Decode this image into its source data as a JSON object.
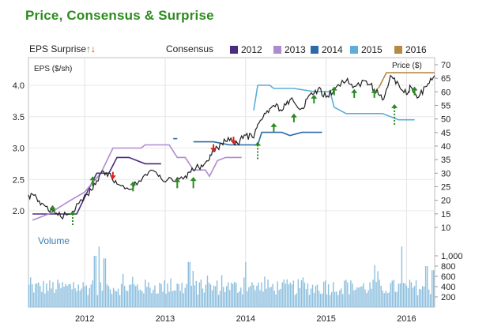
{
  "title": "Price, Consensus & Surprise",
  "colors": {
    "title": "#2e8b1e",
    "s2012": "#4b2a7f",
    "s2013": "#b08ad0",
    "s2014": "#2c6aa8",
    "s2015": "#5aaed8",
    "s2016": "#b58a44",
    "price": "#222222",
    "volume": "#8dbfdf",
    "up_arrow": "#2a8a22",
    "down_arrow": "#dd2222"
  },
  "legend": {
    "eps_surprise_label": "EPS Surprise",
    "consensus_label": "Consensus",
    "series_labels": [
      "2012",
      "2013",
      "2014",
      "2015",
      "2016"
    ]
  },
  "chart_data": {
    "type": "line",
    "left_axis": {
      "label": "EPS ($/sh)",
      "ticks": [
        "2.0",
        "2.5",
        "3.0",
        "3.5",
        "4.0"
      ],
      "range": [
        1.7,
        4.4
      ]
    },
    "right_axis": {
      "label": "Price ($)",
      "ticks": [
        "10",
        "15",
        "20",
        "25",
        "30",
        "35",
        "40",
        "45",
        "50",
        "55",
        "60",
        "65",
        "70"
      ],
      "range": [
        7,
        72
      ]
    },
    "volume_axis": {
      "label": "Volume",
      "ticks": [
        "200",
        "400",
        "600",
        "800",
        "1,000"
      ],
      "range": [
        0,
        1250
      ]
    },
    "x_axis": {
      "ticks": [
        "2012",
        "2013",
        "2014",
        "2015",
        "2016"
      ],
      "range": [
        2011.3,
        2016.35
      ]
    },
    "consensus": [
      {
        "name": "2012",
        "segments": [
          [
            [
              2011.35,
              1.95
            ],
            [
              2011.9,
              1.95
            ],
            [
              2012.05,
              2.35
            ],
            [
              2012.15,
              2.6
            ],
            [
              2012.3,
              2.6
            ],
            [
              2012.4,
              2.85
            ],
            [
              2012.55,
              2.85
            ],
            [
              2012.75,
              2.75
            ],
            [
              2012.95,
              2.75
            ]
          ]
        ]
      },
      {
        "name": "2013",
        "segments": [
          [
            [
              2011.35,
              1.85
            ],
            [
              2011.55,
              1.95
            ],
            [
              2011.8,
              2.15
            ],
            [
              2012.0,
              2.3
            ],
            [
              2012.2,
              2.6
            ],
            [
              2012.35,
              3.0
            ],
            [
              2012.7,
              3.0
            ],
            [
              2012.75,
              3.05
            ],
            [
              2013.05,
              3.05
            ],
            [
              2013.15,
              2.85
            ],
            [
              2013.25,
              2.85
            ],
            [
              2013.35,
              2.65
            ],
            [
              2013.5,
              2.65
            ],
            [
              2013.55,
              2.55
            ],
            [
              2013.65,
              2.8
            ],
            [
              2013.75,
              2.85
            ],
            [
              2013.95,
              2.85
            ]
          ]
        ]
      },
      {
        "name": "2014",
        "segments": [
          [
            [
              2013.1,
              3.15
            ],
            [
              2013.15,
              3.15
            ]
          ],
          [
            [
              2013.35,
              3.1
            ],
            [
              2013.6,
              3.1
            ],
            [
              2013.8,
              3.05
            ],
            [
              2014.15,
              3.05
            ],
            [
              2014.2,
              3.25
            ],
            [
              2014.45,
              3.25
            ],
            [
              2014.55,
              3.2
            ],
            [
              2014.7,
              3.25
            ],
            [
              2014.95,
              3.25
            ]
          ]
        ]
      },
      {
        "name": "2015",
        "segments": [
          [
            [
              2014.1,
              3.6
            ],
            [
              2014.15,
              4.0
            ],
            [
              2014.3,
              4.0
            ],
            [
              2014.35,
              3.95
            ],
            [
              2014.6,
              3.95
            ],
            [
              2014.85,
              3.9
            ],
            [
              2015.05,
              3.9
            ],
            [
              2015.1,
              3.65
            ],
            [
              2015.25,
              3.55
            ],
            [
              2015.45,
              3.55
            ],
            [
              2015.7,
              3.55
            ],
            [
              2015.9,
              3.45
            ],
            [
              2016.1,
              3.45
            ]
          ]
        ]
      },
      {
        "name": "2016",
        "segments": [
          [
            [
              2015.65,
              3.95
            ],
            [
              2015.75,
              4.2
            ],
            [
              2016.35,
              4.2
            ]
          ]
        ]
      }
    ],
    "price": [
      [
        2011.3,
        22
      ],
      [
        2011.4,
        21
      ],
      [
        2011.5,
        18
      ],
      [
        2011.6,
        16
      ],
      [
        2011.7,
        14
      ],
      [
        2011.85,
        16
      ],
      [
        2012.0,
        22
      ],
      [
        2012.1,
        24
      ],
      [
        2012.2,
        30
      ],
      [
        2012.3,
        30
      ],
      [
        2012.4,
        26
      ],
      [
        2012.55,
        24
      ],
      [
        2012.7,
        27
      ],
      [
        2012.85,
        31
      ],
      [
        2012.95,
        28
      ],
      [
        2013.1,
        27
      ],
      [
        2013.25,
        29
      ],
      [
        2013.35,
        31
      ],
      [
        2013.45,
        33
      ],
      [
        2013.55,
        35
      ],
      [
        2013.6,
        38
      ],
      [
        2013.7,
        41
      ],
      [
        2013.8,
        42
      ],
      [
        2013.9,
        41
      ],
      [
        2014.0,
        44
      ],
      [
        2014.1,
        43
      ],
      [
        2014.15,
        48
      ],
      [
        2014.25,
        52
      ],
      [
        2014.35,
        55
      ],
      [
        2014.45,
        53
      ],
      [
        2014.55,
        57
      ],
      [
        2014.7,
        54
      ],
      [
        2014.8,
        59
      ],
      [
        2014.9,
        61
      ],
      [
        2015.0,
        58
      ],
      [
        2015.1,
        61
      ],
      [
        2015.25,
        64
      ],
      [
        2015.35,
        62
      ],
      [
        2015.5,
        64
      ],
      [
        2015.6,
        61
      ],
      [
        2015.7,
        57
      ],
      [
        2015.8,
        66
      ],
      [
        2015.9,
        63
      ],
      [
        2016.0,
        59
      ],
      [
        2016.05,
        62
      ],
      [
        2016.15,
        58
      ],
      [
        2016.25,
        62
      ],
      [
        2016.35,
        66
      ]
    ],
    "surprise_arrows": [
      {
        "x": 2011.6,
        "y": 1.99,
        "dir": "up",
        "len": 0.02
      },
      {
        "x": 2011.85,
        "y": 1.9,
        "dir": "up",
        "len": 0.15
      },
      {
        "x": 2012.1,
        "y": 2.45,
        "dir": "up",
        "len": 0.06
      },
      {
        "x": 2012.35,
        "y": 2.6,
        "dir": "down",
        "len": 0.02
      },
      {
        "x": 2012.6,
        "y": 2.37,
        "dir": "up",
        "len": 0.06
      },
      {
        "x": 2013.15,
        "y": 2.42,
        "dir": "up",
        "len": 0.06
      },
      {
        "x": 2013.35,
        "y": 2.44,
        "dir": "up",
        "len": 0.08
      },
      {
        "x": 2013.6,
        "y": 3.04,
        "dir": "down",
        "len": 0.02
      },
      {
        "x": 2013.85,
        "y": 3.16,
        "dir": "down",
        "len": 0.02
      },
      {
        "x": 2014.15,
        "y": 3.0,
        "dir": "up",
        "len": 0.18
      },
      {
        "x": 2014.35,
        "y": 3.3,
        "dir": "up",
        "len": 0.04
      },
      {
        "x": 2014.6,
        "y": 3.45,
        "dir": "up",
        "len": 0.04
      },
      {
        "x": 2014.85,
        "y": 3.75,
        "dir": "up",
        "len": 0.04
      },
      {
        "x": 2015.1,
        "y": 3.88,
        "dir": "up",
        "len": 0.04
      },
      {
        "x": 2015.35,
        "y": 3.84,
        "dir": "up",
        "len": 0.04
      },
      {
        "x": 2015.6,
        "y": 3.84,
        "dir": "up",
        "len": 0.04
      },
      {
        "x": 2015.85,
        "y": 3.6,
        "dir": "up",
        "len": 0.24
      },
      {
        "x": 2016.1,
        "y": 3.88,
        "dir": "up",
        "len": 0.04
      }
    ],
    "volume_bar_count": 255,
    "volume_base": 420,
    "volume_spikes": [
      {
        "x": 2012.13,
        "v": 1000
      },
      {
        "x": 2012.18,
        "v": 1180
      },
      {
        "x": 2012.25,
        "v": 950
      },
      {
        "x": 2013.3,
        "v": 880
      },
      {
        "x": 2014.0,
        "v": 880
      },
      {
        "x": 2015.6,
        "v": 820
      },
      {
        "x": 2015.95,
        "v": 1180
      },
      {
        "x": 2016.25,
        "v": 800
      },
      {
        "x": 2016.33,
        "v": 720
      }
    ]
  }
}
